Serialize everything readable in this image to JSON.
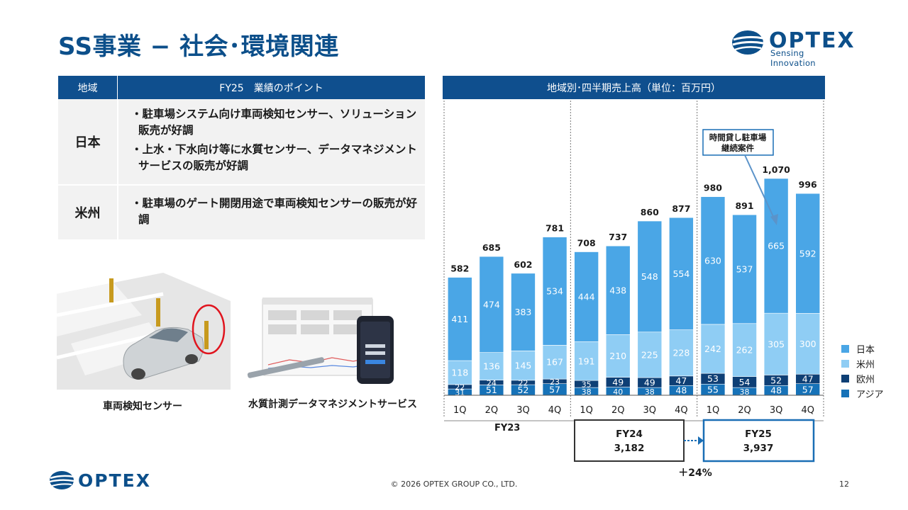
{
  "title": "SS事業 − 社会･環境関連",
  "logo": {
    "word": "OPTEX",
    "tagline": "Sensing Innovation"
  },
  "table": {
    "header_region": "地域",
    "header_points": "FY25　業績のポイント",
    "rows": [
      {
        "region": "日本",
        "points": [
          "駐車場システム向け車両検知センサー、ソリューション販売が好調",
          "上水・下水向け等に水質センサー、データマネジメントサービスの販売が好調"
        ]
      },
      {
        "region": "米州",
        "points": [
          "駐車場のゲート開閉用途で車両検知センサーの販売が好調"
        ]
      }
    ]
  },
  "captions": {
    "photo1": "車両検知センサー",
    "photo2": "水質計測データマネジメントサービス"
  },
  "chart_header": "地域別･四半期売上高（単位：百万円）",
  "chart_data": {
    "type": "bar",
    "stacked": true,
    "categories": [
      "1Q",
      "2Q",
      "3Q",
      "4Q",
      "1Q",
      "2Q",
      "3Q",
      "4Q",
      "1Q",
      "2Q",
      "3Q",
      "4Q"
    ],
    "totals": [
      582,
      685,
      602,
      781,
      708,
      737,
      860,
      877,
      980,
      891,
      1070,
      996
    ],
    "series": [
      {
        "name": "アジア",
        "color": "#1672b8",
        "values": [
          31,
          51,
          52,
          57,
          38,
          40,
          38,
          48,
          55,
          38,
          48,
          57
        ]
      },
      {
        "name": "欧州",
        "color": "#0e3f75",
        "values": [
          22,
          24,
          22,
          23,
          35,
          49,
          49,
          47,
          53,
          54,
          52,
          47
        ]
      },
      {
        "name": "米州",
        "color": "#8fcdf4",
        "values": [
          118,
          136,
          145,
          167,
          191,
          210,
          225,
          228,
          242,
          262,
          305,
          300
        ]
      },
      {
        "name": "日本",
        "color": "#4aa6e6",
        "values": [
          411,
          474,
          383,
          534,
          444,
          438,
          548,
          554,
          630,
          537,
          665,
          592
        ]
      }
    ],
    "legend_order": [
      "日本",
      "米州",
      "欧州",
      "アジア"
    ],
    "legend_position": "right",
    "fiscal_years": [
      {
        "label": "FY23"
      },
      {
        "label": "FY24",
        "total": "3,182"
      },
      {
        "label": "FY25",
        "total": "3,937"
      }
    ],
    "growth": "＋24%",
    "annotation": "時間貸し駐車場\n継続案件"
  },
  "footer": {
    "copyright": "© 2026 OPTEX GROUP CO., LTD.",
    "page": "12"
  }
}
